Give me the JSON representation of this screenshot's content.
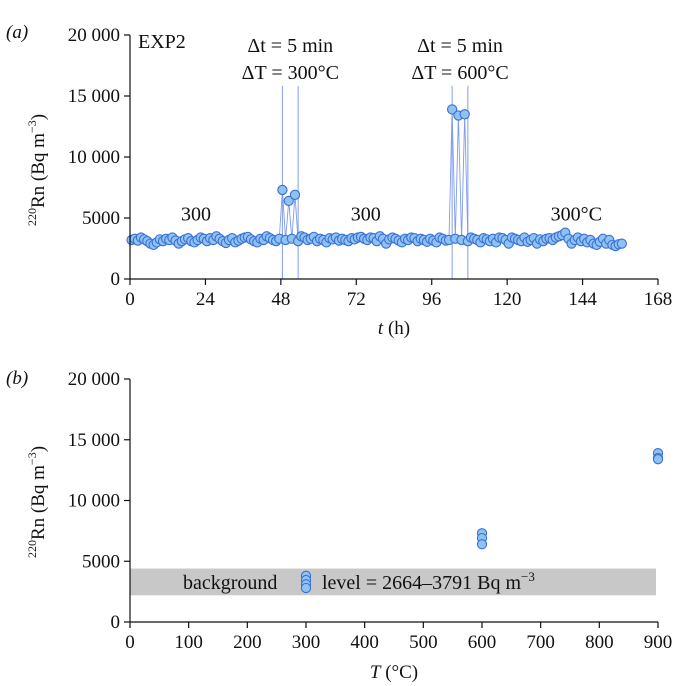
{
  "chart_data": [
    {
      "type": "line",
      "panel_label": "(a)",
      "experiment_label": "EXP2",
      "xlabel_var": "t",
      "xlabel_unit": "(h)",
      "ylabel_iso": "220",
      "ylabel_main": "Rn (Bq m",
      "ylabel_exp": "−3",
      "ylabel_close": ")",
      "xlim": [
        0,
        168
      ],
      "ylim": [
        0,
        20000
      ],
      "xticks": [
        0,
        24,
        48,
        72,
        96,
        120,
        144,
        168
      ],
      "yticks": [
        0,
        5000,
        10000,
        15000,
        20000
      ],
      "ytick_labels": [
        "0",
        "5000",
        "10 000",
        "15 000",
        "20 000"
      ],
      "grid": false,
      "marker_color": "#8ec3f0",
      "marker_edge": "#3a6fd8",
      "line_color": "#7f9ce8",
      "series": [
        {
          "x": [
            0.5,
            1.5,
            2.5,
            3.5,
            4.5,
            5.5,
            6.5,
            7.5,
            8.5,
            9.5,
            10.5,
            11.5,
            12.5,
            13.5,
            14.5,
            15.5,
            16.5,
            17.5,
            18.5,
            19.5,
            20.5,
            21.5,
            22.5,
            23.5,
            24.5,
            25.5,
            26.5,
            27.5,
            28.5,
            29.5,
            30.5,
            31.5,
            32.5,
            33.5,
            34.5,
            35.5,
            36.5,
            37.5,
            38.5,
            39.5,
            40.5,
            41.5,
            42.5,
            43.5,
            44.5,
            45.5,
            46.5,
            47.5,
            48.5,
            49.5,
            50.5,
            51.5,
            52.5,
            53.5,
            54.5,
            55.5,
            56.5,
            57.5,
            58.5,
            59.5,
            60.5,
            61.5,
            62.5,
            63.5,
            64.5,
            65.5,
            66.5,
            67.5,
            68.5,
            69.5,
            70.5,
            71.5,
            72.5,
            73.5,
            74.5,
            75.5,
            76.5,
            77.5,
            78.5,
            79.5,
            80.5,
            81.5,
            82.5,
            83.5,
            84.5,
            85.5,
            86.5,
            87.5,
            88.5,
            89.5,
            90.5,
            91.5,
            92.5,
            93.5,
            94.5,
            95.5,
            96.5,
            97.5,
            98.5,
            99.5,
            100.5,
            101.5,
            102.5,
            103.5,
            104.5,
            105.5,
            106.5,
            107.5,
            108.5,
            109.5,
            110.5,
            111.5,
            112.5,
            113.5,
            114.5,
            115.5,
            116.5,
            117.5,
            118.5,
            119.5,
            120.5,
            121.5,
            122.5,
            123.5,
            124.5,
            125.5,
            126.5,
            127.5,
            128.5,
            129.5,
            130.5,
            131.5,
            132.5,
            133.5,
            134.5,
            135.5,
            136.5,
            137.5,
            138.5,
            139.5,
            140.5,
            141.5,
            142.5,
            143.5,
            144.5,
            145.5,
            146.5,
            147.5,
            148.5,
            149.5,
            150.5,
            151.5,
            152.5,
            153.5,
            154.5,
            155.5,
            156.5
          ],
          "y": [
            3200,
            3300,
            3150,
            3400,
            3250,
            3100,
            2900,
            2800,
            3000,
            3250,
            3100,
            3300,
            3200,
            3400,
            3150,
            2900,
            3100,
            3250,
            3350,
            3100,
            3000,
            3200,
            3400,
            3300,
            3100,
            3350,
            3200,
            3500,
            3300,
            3100,
            2950,
            3200,
            3350,
            3000,
            3150,
            3300,
            3400,
            3450,
            3250,
            3100,
            3000,
            3300,
            3200,
            3500,
            3350,
            3200,
            3100,
            3300,
            7300,
            3200,
            6400,
            3300,
            6900,
            3100,
            3500,
            3400,
            3200,
            3300,
            3450,
            3100,
            3300,
            3200,
            3000,
            3350,
            3250,
            3400,
            3150,
            3300,
            3200,
            3100,
            3350,
            3250,
            3400,
            3450,
            3300,
            3200,
            3400,
            3350,
            3100,
            3500,
            3300,
            2900,
            3250,
            3400,
            3300,
            3150,
            3000,
            3300,
            3200,
            3400,
            3350,
            3100,
            3300,
            3200,
            3050,
            3300,
            3150,
            3000,
            3400,
            3300,
            3150,
            3200,
            13900,
            3300,
            13400,
            3200,
            13500,
            3100,
            3400,
            3300,
            3200,
            3000,
            3350,
            3250,
            3100,
            3300,
            3000,
            3400,
            3350,
            3200,
            2900,
            3400,
            3300,
            3200,
            3100,
            3400,
            3050,
            3200,
            3350,
            2900,
            3250,
            3100,
            3300,
            3350,
            3200,
            3400,
            3500,
            3600,
            3800,
            3300,
            2900,
            3200,
            3400,
            3100,
            3300,
            3000,
            3200,
            2900,
            2800,
            3050,
            3300,
            2900,
            3200,
            2800,
            2700,
            2850,
            2900
          ]
        }
      ],
      "event_windows": [
        {
          "start": 48.5,
          "end": 53.5,
          "label_line1": "Δt = 5 min",
          "label_line2": "ΔT = 300°C"
        },
        {
          "start": 102.5,
          "end": 107.5,
          "label_line1": "Δt = 5 min",
          "label_line2": "ΔT = 600°C"
        }
      ],
      "segment_annotations": [
        {
          "text": "300",
          "x": 21,
          "y": 4800
        },
        {
          "text": "300",
          "x": 75,
          "y": 4800
        },
        {
          "text": "300°C",
          "x": 142,
          "y": 4800
        }
      ]
    },
    {
      "type": "scatter",
      "panel_label": "(b)",
      "xlabel_var": "T",
      "xlabel_unit": "(°C)",
      "ylabel_iso": "220",
      "ylabel_main": "Rn (Bq m",
      "ylabel_exp": "−3",
      "ylabel_close": ")",
      "xlim": [
        0,
        900
      ],
      "ylim": [
        0,
        20000
      ],
      "xticks": [
        0,
        100,
        200,
        300,
        400,
        500,
        600,
        700,
        800,
        900
      ],
      "yticks": [
        0,
        5000,
        10000,
        15000,
        20000
      ],
      "ytick_labels": [
        "0",
        "5000",
        "10 000",
        "15 000",
        "20 000"
      ],
      "grid": false,
      "marker_color": "#8ec3f0",
      "marker_edge": "#3a6fd8",
      "points": [
        {
          "x": 300,
          "y": 3800
        },
        {
          "x": 300,
          "y": 3450
        },
        {
          "x": 300,
          "y": 3100
        },
        {
          "x": 300,
          "y": 2800
        },
        {
          "x": 600,
          "y": 7300
        },
        {
          "x": 600,
          "y": 6900
        },
        {
          "x": 600,
          "y": 6400
        },
        {
          "x": 900,
          "y": 13900
        },
        {
          "x": 900,
          "y": 13500
        },
        {
          "x": 900,
          "y": 13400
        }
      ],
      "background_band": {
        "y0": 2200,
        "y1": 4400,
        "color": "#c8c8c8",
        "label_left": "background",
        "label_right": "level = 2664–3791 Bq m",
        "label_exp": "−3"
      }
    }
  ]
}
